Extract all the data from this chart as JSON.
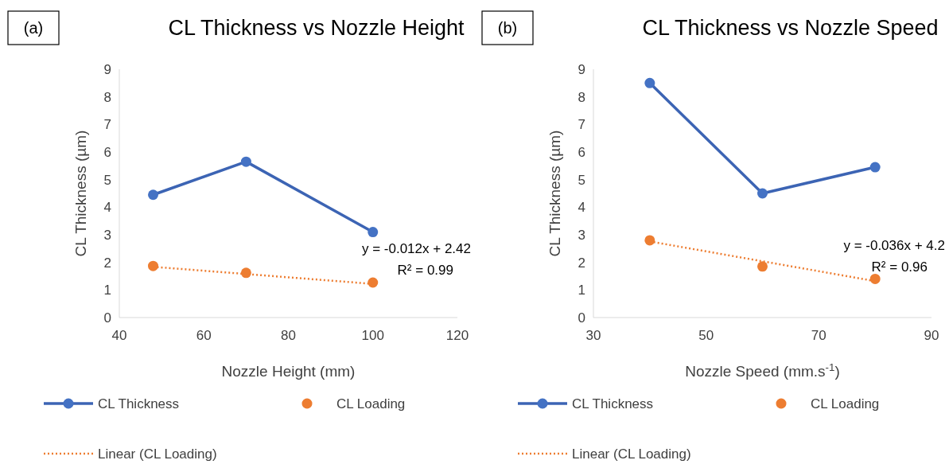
{
  "chart_data": [
    {
      "type": "line",
      "title": "CL Thickness vs Nozzle Height",
      "xlabel": "Nozzle Height (mm)",
      "ylabel": "CL Thickness (µm)",
      "annotations": [
        "(a)",
        "y = -0.012x + 2.42",
        "R² = 0.99"
      ],
      "xlim": [
        40,
        120
      ],
      "xticks": [
        40,
        60,
        80,
        100,
        120
      ],
      "ylim": [
        0,
        9
      ],
      "yticks": [
        0,
        1,
        2,
        3,
        4,
        5,
        6,
        7,
        8,
        9
      ],
      "grid": false,
      "legend": "bottom",
      "series": [
        {
          "name": "CL Thickness",
          "color": "#3c64b4",
          "x": [
            48,
            70,
            100
          ],
          "values": [
            4.45,
            5.65,
            3.1
          ],
          "marker": "circle",
          "line_style": "solid"
        },
        {
          "name": "CL Loading",
          "type": "scatter",
          "color": "#ed7d31",
          "x": [
            48,
            70,
            100
          ],
          "values": [
            1.87,
            1.62,
            1.27
          ],
          "marker": "circle"
        },
        {
          "name": "Linear (CL Loading)",
          "color": "#ed7d31",
          "x": [
            48,
            100
          ],
          "values": [
            1.84,
            1.22
          ],
          "marker": "none",
          "line_style": "dotted"
        }
      ]
    },
    {
      "type": "line",
      "title": "CL Thickness vs Nozzle Speed",
      "xlabel": "Nozzle Speed (mm.s$^{-1}$)",
      "ylabel": "CL Thickness (µm)",
      "annotations": [
        "(b)",
        "y = -0.036x + 4.2",
        "R² = 0.96"
      ],
      "xlim": [
        30,
        90
      ],
      "xticks": [
        30,
        50,
        70,
        90
      ],
      "ylim": [
        0,
        9
      ],
      "yticks": [
        0,
        1,
        2,
        3,
        4,
        5,
        6,
        7,
        8,
        9
      ],
      "grid": false,
      "legend": "bottom",
      "series": [
        {
          "name": "CL Thickness",
          "color": "#3c64b4",
          "x": [
            40,
            60,
            80
          ],
          "values": [
            8.5,
            4.5,
            5.45
          ],
          "marker": "circle",
          "line_style": "solid"
        },
        {
          "name": "CL Loading",
          "type": "scatter",
          "color": "#ed7d31",
          "x": [
            40,
            60,
            80
          ],
          "values": [
            2.8,
            1.85,
            1.4
          ],
          "marker": "circle"
        },
        {
          "name": "Linear (CL Loading)",
          "color": "#ed7d31",
          "x": [
            40,
            80
          ],
          "values": [
            2.76,
            1.32
          ],
          "marker": "none",
          "line_style": "dotted"
        }
      ]
    }
  ]
}
